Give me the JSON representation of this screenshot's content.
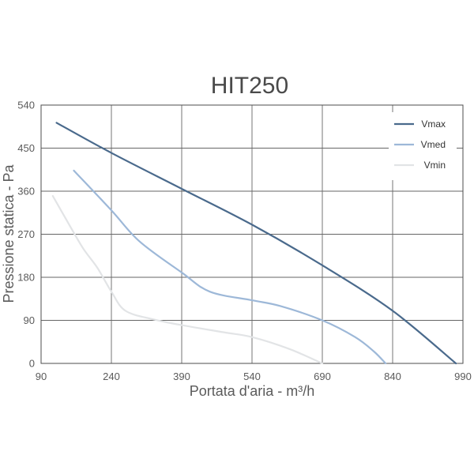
{
  "chart_data": {
    "type": "line",
    "title": "HIT250",
    "xlabel": "Portata d'aria - m³/h",
    "ylabel": "Pressione statica - Pa",
    "xlim": [
      90,
      990
    ],
    "ylim": [
      0,
      540
    ],
    "x_ticks": [
      "90",
      "240",
      "390",
      "540",
      "690",
      "840",
      "990"
    ],
    "y_ticks": [
      "0",
      "90",
      "180",
      "270",
      "360",
      "450",
      "540"
    ],
    "grid": true,
    "legend_position": "top-right",
    "series": [
      {
        "name": "Vmax",
        "color": "#4a6a8c",
        "x": [
          123,
          240,
          390,
          540,
          690,
          840,
          975
        ],
        "y": [
          503,
          440,
          365,
          290,
          205,
          110,
          0
        ]
      },
      {
        "name": "Vmed",
        "color": "#9db8d8",
        "x": [
          160,
          240,
          300,
          390,
          450,
          540,
          600,
          690,
          760,
          800,
          825
        ],
        "y": [
          403,
          320,
          255,
          190,
          150,
          132,
          120,
          90,
          55,
          25,
          0
        ]
      },
      {
        "name": "Vmin",
        "color": "#e2e4e6",
        "x": [
          115,
          150,
          180,
          210,
          240,
          270,
          330,
          390,
          480,
          540,
          620,
          690
        ],
        "y": [
          350,
          290,
          240,
          200,
          150,
          110,
          92,
          80,
          65,
          55,
          30,
          0
        ]
      }
    ]
  }
}
